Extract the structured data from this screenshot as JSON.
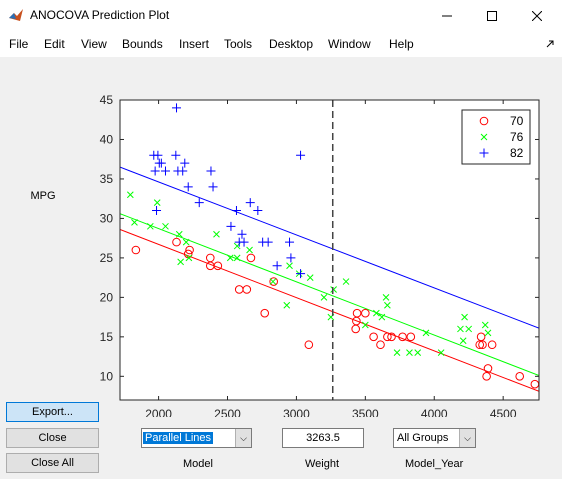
{
  "window": {
    "title": "ANOCOVA Prediction Plot"
  },
  "menu": [
    "File",
    "Edit",
    "View",
    "Bounds",
    "Insert",
    "Tools",
    "Desktop",
    "Window",
    "Help"
  ],
  "buttons": {
    "export": "Export...",
    "close": "Close",
    "close_all": "Close All"
  },
  "controls": {
    "model_value": "Parallel Lines",
    "weight_value": "3263.5",
    "group_value": "All Groups",
    "model_label": "Model",
    "weight_label": "Weight",
    "group_label": "Model_Year"
  },
  "chart_data": {
    "type": "scatter",
    "ylabel": "MPG",
    "xlim": [
      1720,
      4760
    ],
    "ylim": [
      7,
      45
    ],
    "xticks": [
      2000,
      2500,
      3000,
      3500,
      4000,
      4500
    ],
    "yticks": [
      10,
      15,
      20,
      25,
      30,
      35,
      40,
      45
    ],
    "reference_x": 3263.5,
    "legend_position": "top-right",
    "series": [
      {
        "name": "70",
        "marker": "circle",
        "color": "#ff0000",
        "line": [
          [
            1720,
            28.6
          ],
          [
            4760,
            8.1
          ]
        ],
        "points": [
          [
            1835,
            26
          ],
          [
            2130,
            27
          ],
          [
            2225,
            26
          ],
          [
            2215,
            25.5
          ],
          [
            2375,
            25
          ],
          [
            2375,
            24
          ],
          [
            2430,
            24
          ],
          [
            2585,
            21
          ],
          [
            2640,
            21
          ],
          [
            2670,
            25
          ],
          [
            2770,
            18
          ],
          [
            2835,
            22
          ],
          [
            3090,
            14
          ],
          [
            3430,
            16
          ],
          [
            3435,
            17
          ],
          [
            3440,
            18
          ],
          [
            3500,
            18
          ],
          [
            3560,
            15
          ],
          [
            3610,
            14
          ],
          [
            3660,
            15
          ],
          [
            3690,
            15
          ],
          [
            3770,
            15
          ],
          [
            3830,
            15
          ],
          [
            4330,
            14
          ],
          [
            4340,
            15
          ],
          [
            4350,
            14
          ],
          [
            4380,
            10
          ],
          [
            4390,
            11
          ],
          [
            4420,
            14
          ],
          [
            4620,
            10
          ],
          [
            4730,
            9
          ]
        ]
      },
      {
        "name": "76",
        "marker": "x",
        "color": "#00ff00",
        "line": [
          [
            1720,
            30.6
          ],
          [
            4760,
            10.1
          ]
        ],
        "points": [
          [
            1795,
            33
          ],
          [
            1825,
            29.5
          ],
          [
            1940,
            29
          ],
          [
            1990,
            32
          ],
          [
            2050,
            29
          ],
          [
            2150,
            28
          ],
          [
            2160,
            24.5
          ],
          [
            2220,
            25
          ],
          [
            2200,
            27
          ],
          [
            2420,
            28
          ],
          [
            2520,
            25
          ],
          [
            2570,
            26.5
          ],
          [
            2570,
            25
          ],
          [
            2660,
            26
          ],
          [
            2830,
            22
          ],
          [
            2930,
            19
          ],
          [
            2950,
            24
          ],
          [
            3020,
            23
          ],
          [
            3100,
            22.5
          ],
          [
            3200,
            20
          ],
          [
            3250,
            17.5
          ],
          [
            3270,
            21
          ],
          [
            3360,
            22
          ],
          [
            3500,
            16.5
          ],
          [
            3580,
            18
          ],
          [
            3620,
            17.5
          ],
          [
            3650,
            20
          ],
          [
            3660,
            19
          ],
          [
            3730,
            13
          ],
          [
            3820,
            13
          ],
          [
            3880,
            13
          ],
          [
            3940,
            15.5
          ],
          [
            4050,
            13
          ],
          [
            4190,
            16
          ],
          [
            4220,
            17.5
          ],
          [
            4210,
            14.5
          ],
          [
            4250,
            16
          ],
          [
            4370,
            16.5
          ],
          [
            4390,
            15.5
          ]
        ]
      },
      {
        "name": "82",
        "marker": "plus",
        "color": "#0000ff",
        "line": [
          [
            1720,
            36.5
          ],
          [
            4760,
            16.1
          ]
        ],
        "points": [
          [
            1965,
            38
          ],
          [
            1975,
            36
          ],
          [
            1985,
            31
          ],
          [
            1995,
            38
          ],
          [
            2005,
            37
          ],
          [
            2020,
            37
          ],
          [
            2050,
            36
          ],
          [
            2125,
            38
          ],
          [
            2130,
            44
          ],
          [
            2140,
            36
          ],
          [
            2175,
            36
          ],
          [
            2190,
            37
          ],
          [
            2215,
            34
          ],
          [
            2295,
            32
          ],
          [
            2380,
            36
          ],
          [
            2395,
            34
          ],
          [
            2525,
            29
          ],
          [
            2565,
            31
          ],
          [
            2585,
            27
          ],
          [
            2605,
            28
          ],
          [
            2620,
            27
          ],
          [
            2665,
            32
          ],
          [
            2720,
            31
          ],
          [
            2755,
            27
          ],
          [
            2795,
            27
          ],
          [
            2860,
            24
          ],
          [
            2950,
            27
          ],
          [
            2960,
            25
          ],
          [
            3030,
            38
          ],
          [
            3030,
            23
          ]
        ]
      }
    ]
  }
}
